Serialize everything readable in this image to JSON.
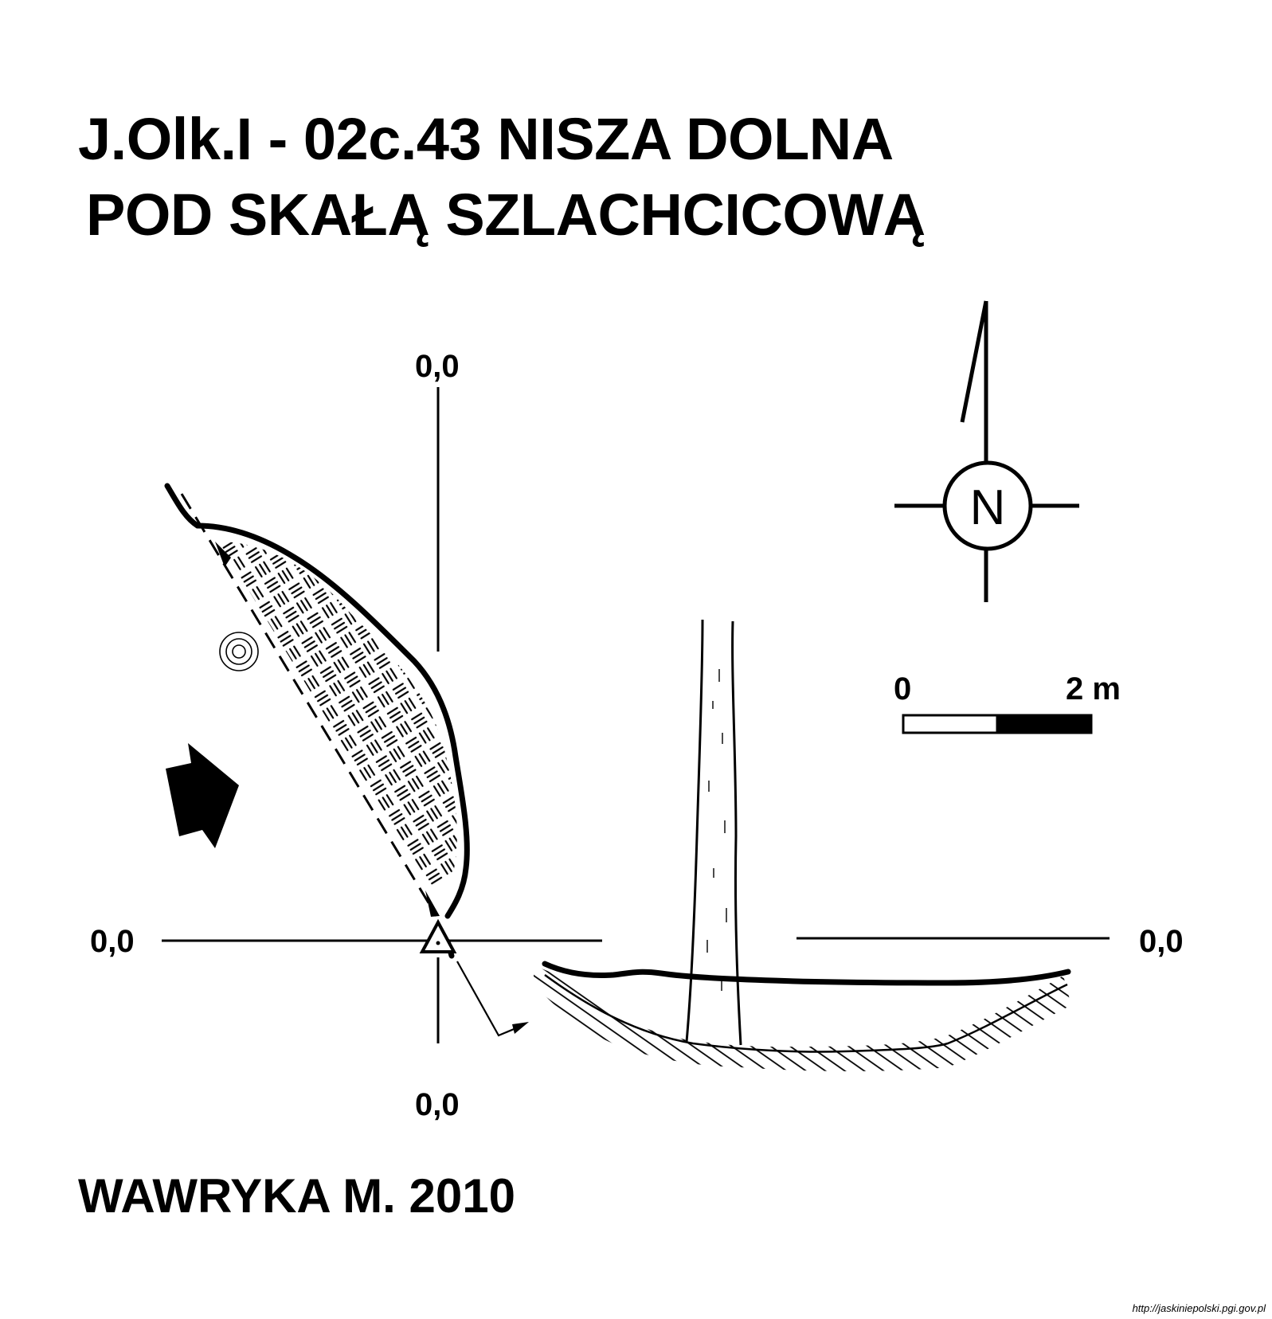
{
  "title": {
    "line1": "J.Olk.I - 02c.43  NISZA DOLNA",
    "line2": "POD SKAŁĄ SZLACHCICOWĄ"
  },
  "labels": {
    "section_top": "0,0",
    "section_bottom": "0,0",
    "section_left": "0,0",
    "section_right": "0,0"
  },
  "compass": {
    "letter": "N"
  },
  "scale_bar": {
    "start": "0",
    "end": "2 m"
  },
  "author": "WAWRYKA M. 2010",
  "source_url": "http://jaskiniepolski.pgi.gov.pl"
}
